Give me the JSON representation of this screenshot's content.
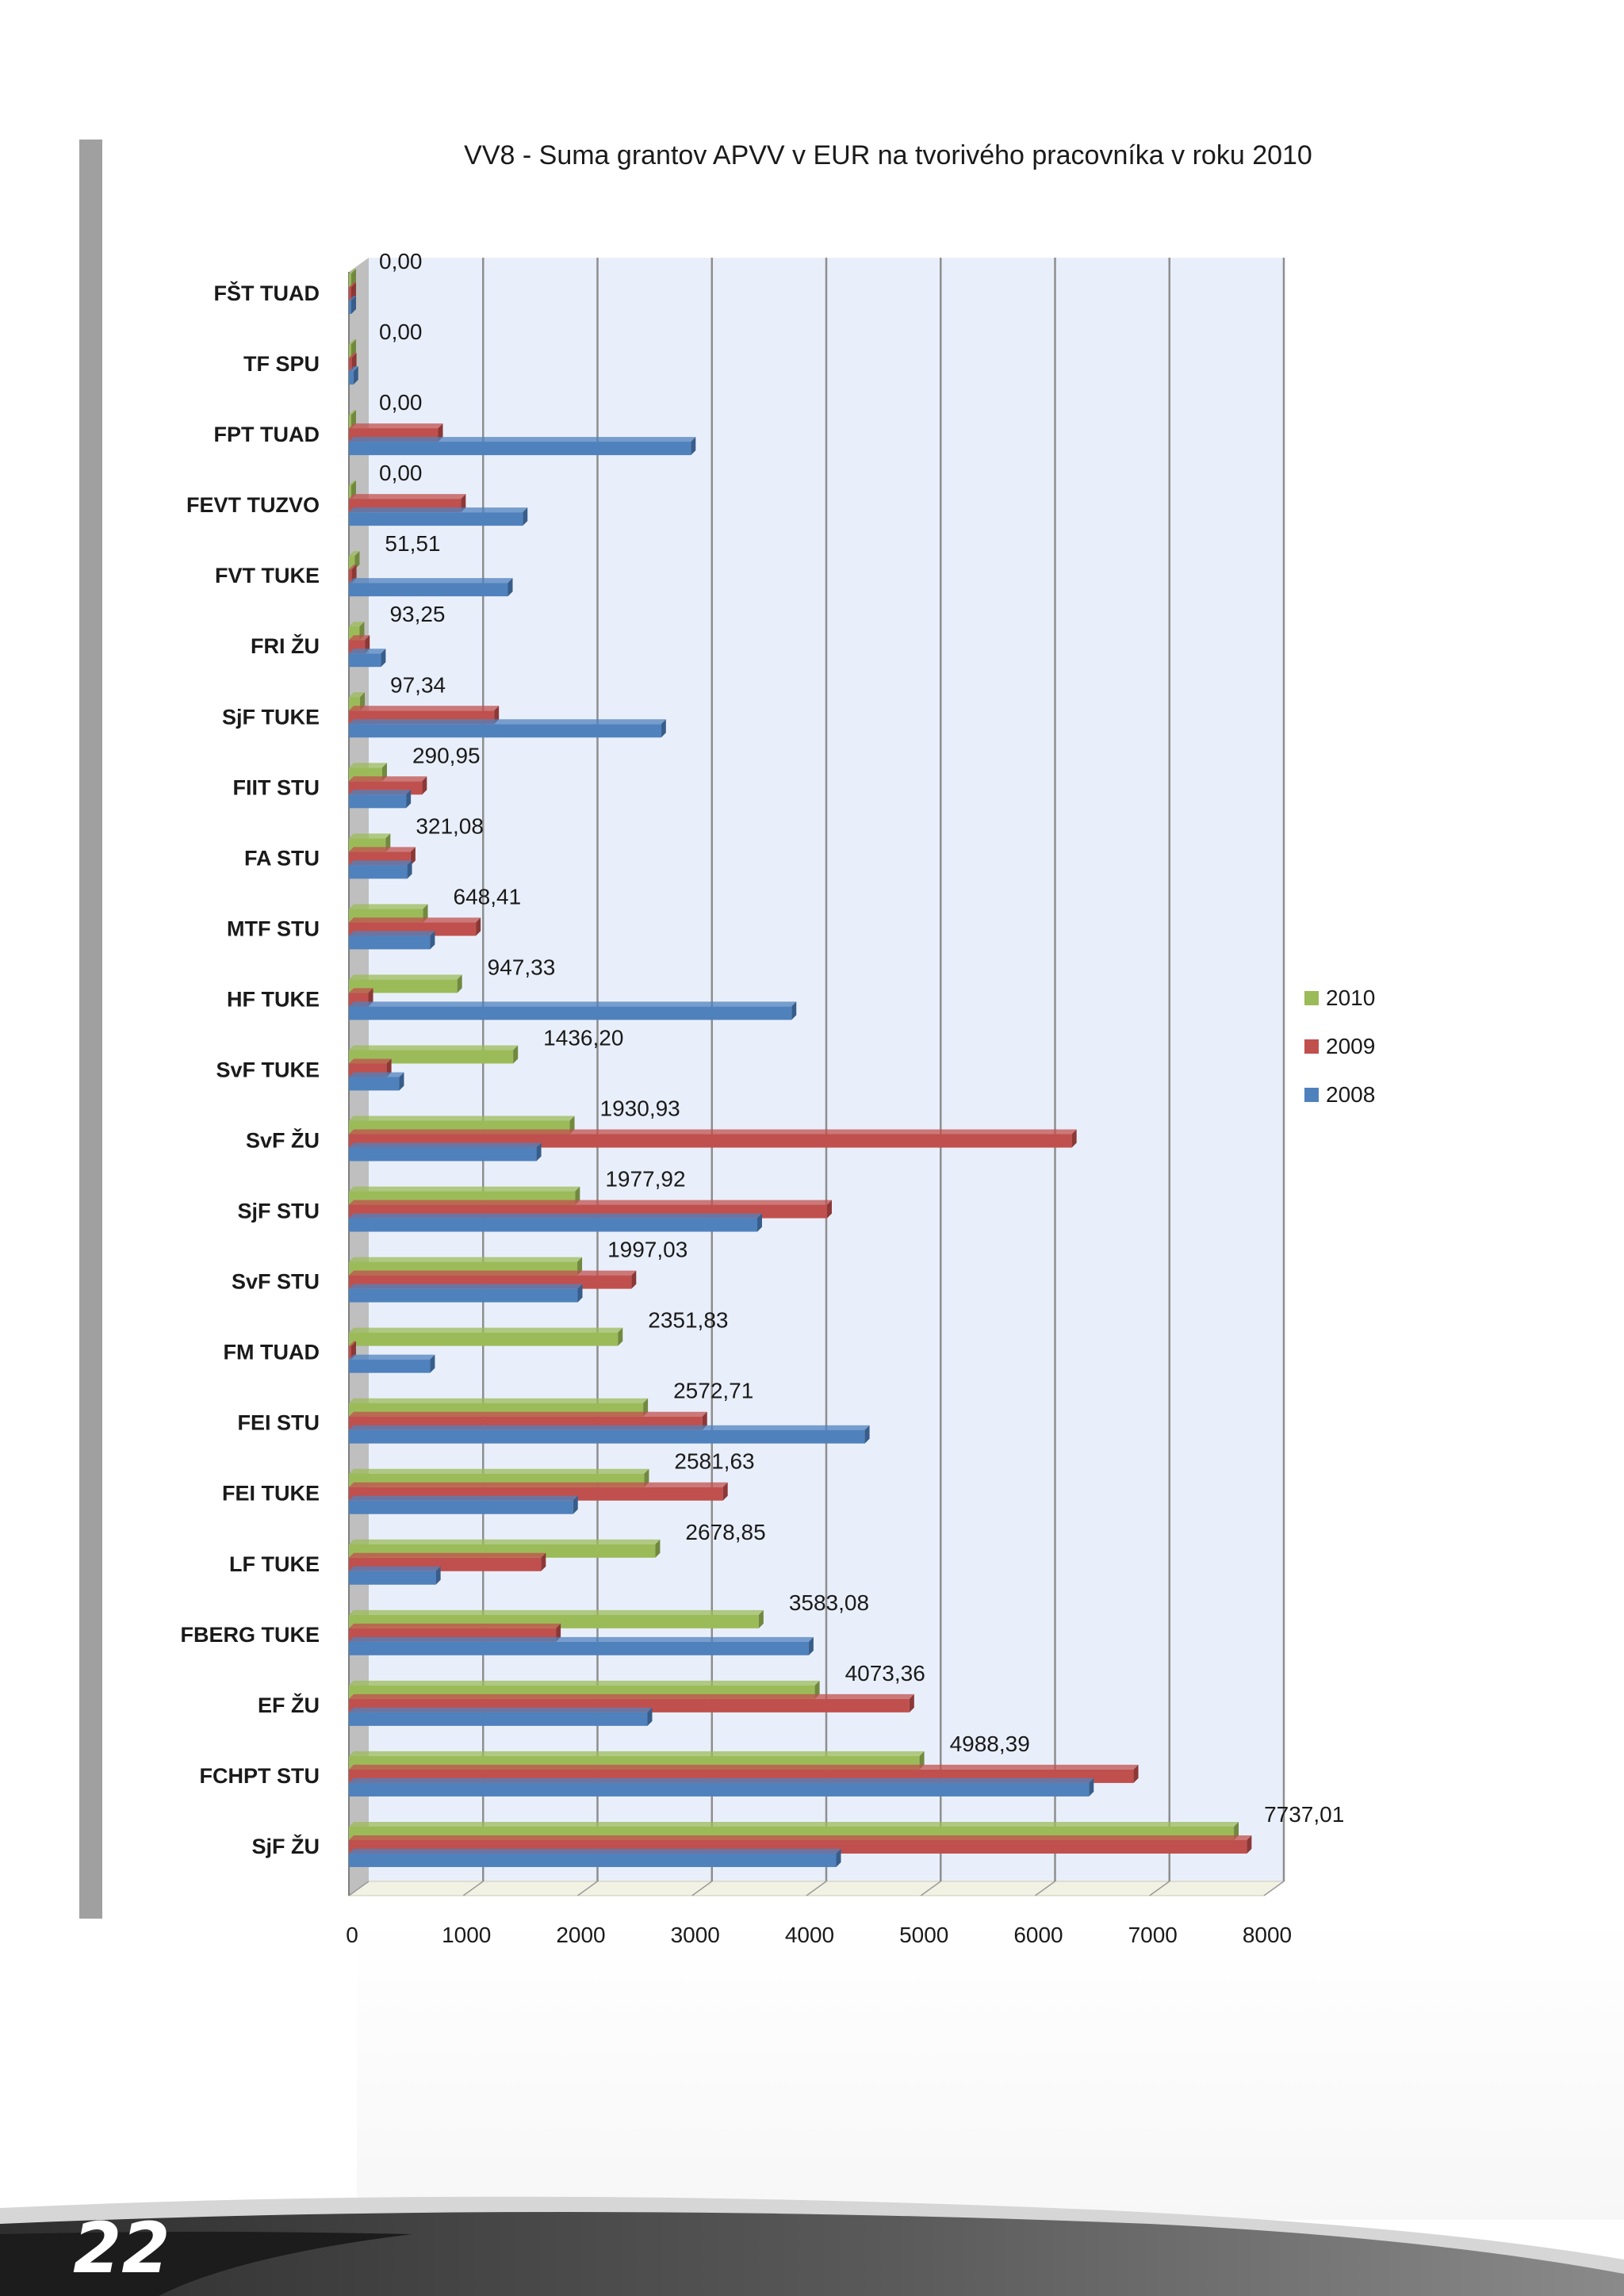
{
  "page": {
    "number": "22"
  },
  "colors": {
    "s2010": "#9bbb59",
    "s2010_dark": "#71893f",
    "s2009": "#c0504d",
    "s2009_dark": "#8c3836",
    "s2008": "#4f81bd",
    "s2008_dark": "#385d8a",
    "plot_bg": "#e9effa",
    "grid": "#8e8e8e",
    "wall_side": "#bfbfbf",
    "floor": "#f2f2e4"
  },
  "chart_data": {
    "type": "bar",
    "orientation": "horizontal",
    "title": "VV8 - Suma grantov APVV v EUR na tvorivého pracovníka v roku 2010",
    "xlabel": "",
    "ylabel": "",
    "xlim": [
      0,
      8000
    ],
    "x_ticks": [
      "0",
      "1000",
      "2000",
      "3000",
      "4000",
      "5000",
      "6000",
      "7000",
      "8000"
    ],
    "grid": true,
    "legend_position": "right",
    "categories": [
      "FŠT TUAD",
      "TF SPU",
      "FPT TUAD",
      "FEVT TUZVO",
      "FVT TUKE",
      "FRI ŽU",
      "SjF TUKE",
      "FIIT STU",
      "FA STU",
      "MTF STU",
      "HF TUKE",
      "SvF TUKE",
      "SvF ŽU",
      "SjF STU",
      "SvF STU",
      "FM TUAD",
      "FEI STU",
      "FEI TUKE",
      "LF TUKE",
      "FBERG  TUKE",
      "EF ŽU",
      "FCHPT STU",
      "SjF ŽU"
    ],
    "series": [
      {
        "name": "2010",
        "values": [
          0,
          0,
          0,
          0,
          51.51,
          93.25,
          97.34,
          290.95,
          321.08,
          648.41,
          947.33,
          1436.2,
          1930.93,
          1977.92,
          1997.03,
          2351.83,
          2572.71,
          2581.63,
          2678.85,
          3583.08,
          4073.36,
          4988.39,
          7737.01
        ]
      },
      {
        "name": "2009",
        "values": [
          20,
          25,
          780,
          980,
          25,
          140,
          1270,
          640,
          540,
          1110,
          170,
          330,
          6320,
          4180,
          2470,
          20,
          3090,
          3270,
          1680,
          1810,
          4900,
          6860,
          7850
        ]
      },
      {
        "name": "2008",
        "values": [
          15,
          40,
          2990,
          1520,
          1390,
          280,
          2730,
          500,
          510,
          710,
          3870,
          440,
          1640,
          3570,
          2000,
          710,
          4510,
          1960,
          760,
          4020,
          2610,
          6470,
          4260
        ]
      }
    ],
    "data_labels": [
      "0,00",
      "0,00",
      "0,00",
      "0,00",
      "51,51",
      "93,25",
      "97,34",
      "290,95",
      "321,08",
      "648,41",
      "947,33",
      "1436,20",
      "1930,93",
      "1977,92",
      "1997,03",
      "2351,83",
      "2572,71",
      "2581,63",
      "2678,85",
      "3583,08",
      "4073,36",
      "4988,39",
      "7737,01"
    ],
    "legend": [
      "2010",
      "2009",
      "2008"
    ]
  }
}
